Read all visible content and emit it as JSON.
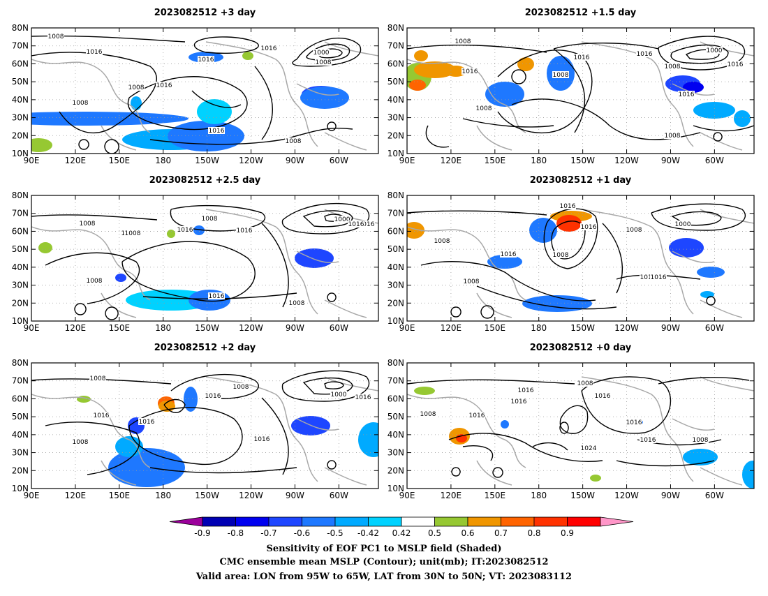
{
  "panels": [
    {
      "id": "p3",
      "title": "2023082512 +3 day"
    },
    {
      "id": "p15",
      "title": "2023082512 +1.5 day"
    },
    {
      "id": "p25",
      "title": "2023082512 +2.5 day"
    },
    {
      "id": "p1",
      "title": "2023082512 +1 day"
    },
    {
      "id": "p2",
      "title": "2023082512 +2 day"
    },
    {
      "id": "p0",
      "title": "2023082512 +0 day"
    }
  ],
  "axes": {
    "lon_labels": [
      "90E",
      "120E",
      "150E",
      "180",
      "150W",
      "120W",
      "90W",
      "60W"
    ],
    "lat_labels": [
      "80N",
      "70N",
      "60N",
      "50N",
      "40N",
      "30N",
      "20N",
      "10N"
    ]
  },
  "contour_labels": {
    "p3": [
      "1008",
      "1016",
      "1016",
      "1008",
      "1016",
      "1016",
      "1008",
      "1000",
      "1008",
      "1016",
      "1008"
    ],
    "p15": [
      "1008",
      "1016",
      "1016",
      "1008",
      "1016",
      "1000",
      "1008",
      "1016",
      "1008",
      "1016",
      "1008"
    ],
    "p25": [
      "1008",
      "1016",
      "1008",
      "1016",
      "1008",
      "1016",
      "1000",
      "1016",
      "1016",
      "1008",
      "1008",
      "1016"
    ],
    "p1": [
      "1008",
      "1016",
      "1016",
      "1008",
      "1000",
      "1008",
      "1016",
      "1016",
      "1008",
      "1016"
    ],
    "p2": [
      "1008",
      "1008",
      "1016",
      "1016",
      "1016",
      "1000",
      "1016",
      "1016",
      "1008"
    ],
    "p0": [
      "1008",
      "1008",
      "1016",
      "1016",
      "1016",
      "1016",
      "1016",
      "1016",
      "1024",
      "1008"
    ]
  },
  "colorbar": {
    "colors": [
      "#9b009b",
      "#0000b4",
      "#0000f0",
      "#1e46ff",
      "#1e78ff",
      "#00aaff",
      "#00d2ff",
      "#ffffff",
      "#96c832",
      "#f09600",
      "#ff6400",
      "#ff3200",
      "#ff0000",
      "#ff96c8"
    ],
    "labels": [
      "-0.9",
      "-0.8",
      "-0.7",
      "-0.6",
      "-0.5",
      "-0.42",
      "0.42",
      "0.5",
      "0.6",
      "0.7",
      "0.8",
      "0.9"
    ]
  },
  "caption": {
    "line1": "Sensitivity of EOF PC1 to MSLP field (Shaded)",
    "line2": "CMC ensemble mean MSLP (Contour); unit(mb); IT:2023082512",
    "line3": "Valid area: LON from 95W to 65W, LAT from 30N to 50N; VT: 2023083112"
  }
}
